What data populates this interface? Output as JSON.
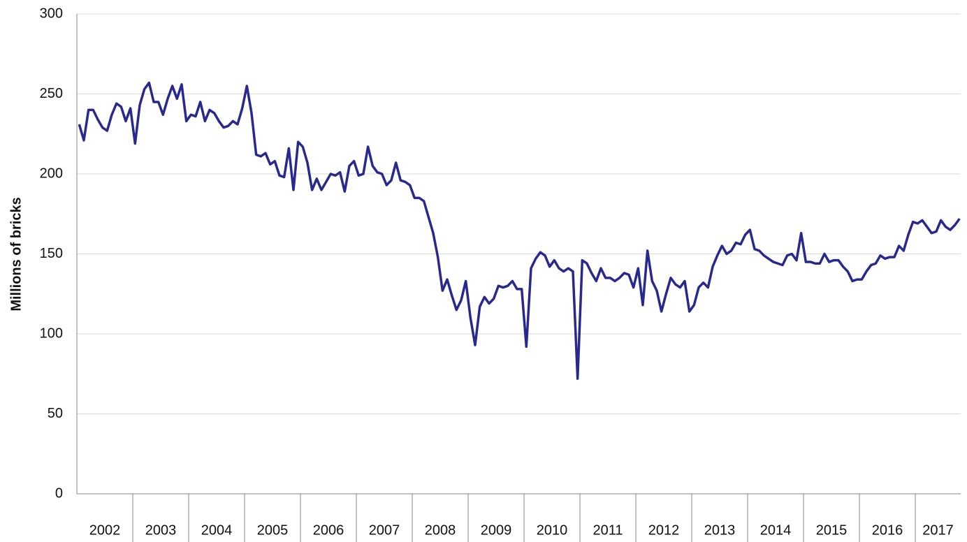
{
  "chart_data": {
    "type": "line",
    "y_label": "Millions  of bricks",
    "year_labels": [
      "2002",
      "2003",
      "2004",
      "2005",
      "2006",
      "2007",
      "2008",
      "2009",
      "2010",
      "2011",
      "2012",
      "2013",
      "2014",
      "2015",
      "2016",
      "2017"
    ],
    "months_per_year": 12,
    "ylim": [
      0,
      300
    ],
    "yticks": [
      0,
      50,
      100,
      150,
      200,
      250,
      300
    ],
    "grid": true,
    "series": [
      {
        "color": "#28298f",
        "values": [
          231,
          221,
          240,
          240,
          234,
          229,
          227,
          237,
          244,
          242,
          233,
          241,
          219,
          243,
          253,
          257,
          245,
          245,
          237,
          247,
          255,
          247,
          256,
          233,
          237,
          236,
          245,
          233,
          240,
          238,
          233,
          229,
          230,
          233,
          231,
          241,
          255,
          238,
          212,
          211,
          213,
          206,
          208,
          199,
          198,
          216,
          190,
          220,
          217,
          207,
          190,
          197,
          190,
          195,
          200,
          199,
          201,
          189,
          205,
          208,
          199,
          200,
          217,
          205,
          201,
          200,
          193,
          196,
          207,
          196,
          195,
          193,
          185,
          185,
          183,
          173,
          163,
          148,
          127,
          134,
          124,
          115,
          121,
          133,
          110,
          93,
          117,
          123,
          119,
          122,
          130,
          129,
          130,
          133,
          128,
          128,
          92,
          141,
          147,
          151,
          149,
          142,
          146,
          141,
          139,
          141,
          139,
          72,
          146,
          144,
          138,
          133,
          141,
          135,
          135,
          133,
          135,
          138,
          137,
          129,
          141,
          118,
          152,
          133,
          127,
          114,
          125,
          135,
          131,
          129,
          133,
          114,
          118,
          129,
          132,
          129,
          142,
          149,
          155,
          150,
          152,
          157,
          156,
          162,
          165,
          153,
          152,
          149,
          147,
          145,
          144,
          143,
          149,
          150,
          146,
          163,
          145,
          145,
          144,
          144,
          150,
          145,
          146,
          146,
          142,
          139,
          133,
          134,
          134,
          139,
          143,
          144,
          149,
          147,
          148,
          148,
          155,
          152,
          162,
          170,
          169,
          171,
          167,
          163,
          164,
          171,
          167,
          165,
          168,
          172
        ]
      }
    ]
  }
}
